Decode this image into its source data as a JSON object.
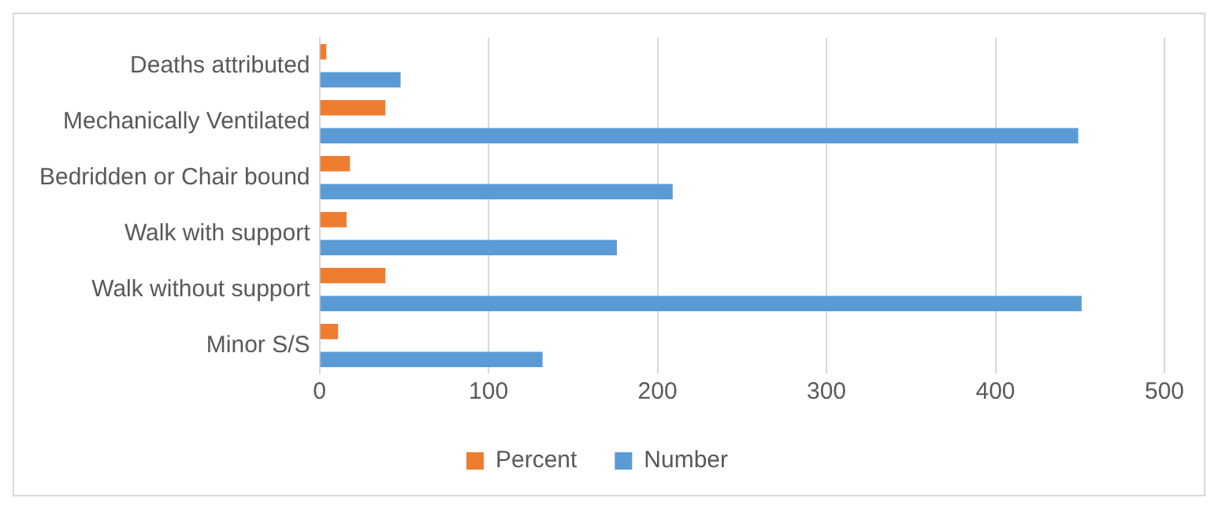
{
  "chart_data": {
    "type": "bar",
    "orientation": "horizontal",
    "categories": [
      "Deaths attributed",
      "Mechanically Ventilated",
      "Bedridden or Chair bound",
      "Walk with support",
      "Walk without support",
      "Minor S/S"
    ],
    "series": [
      {
        "name": "Percent",
        "color": "#ed7d31",
        "values": [
          4,
          39,
          18,
          16,
          39,
          11
        ]
      },
      {
        "name": "Number",
        "color": "#5b9bd5",
        "values": [
          48,
          449,
          209,
          176,
          451,
          132
        ]
      }
    ],
    "xlim": [
      0,
      500
    ],
    "xticks": [
      0,
      100,
      200,
      300,
      400,
      500
    ],
    "grid": "x",
    "legend": "bottom"
  }
}
